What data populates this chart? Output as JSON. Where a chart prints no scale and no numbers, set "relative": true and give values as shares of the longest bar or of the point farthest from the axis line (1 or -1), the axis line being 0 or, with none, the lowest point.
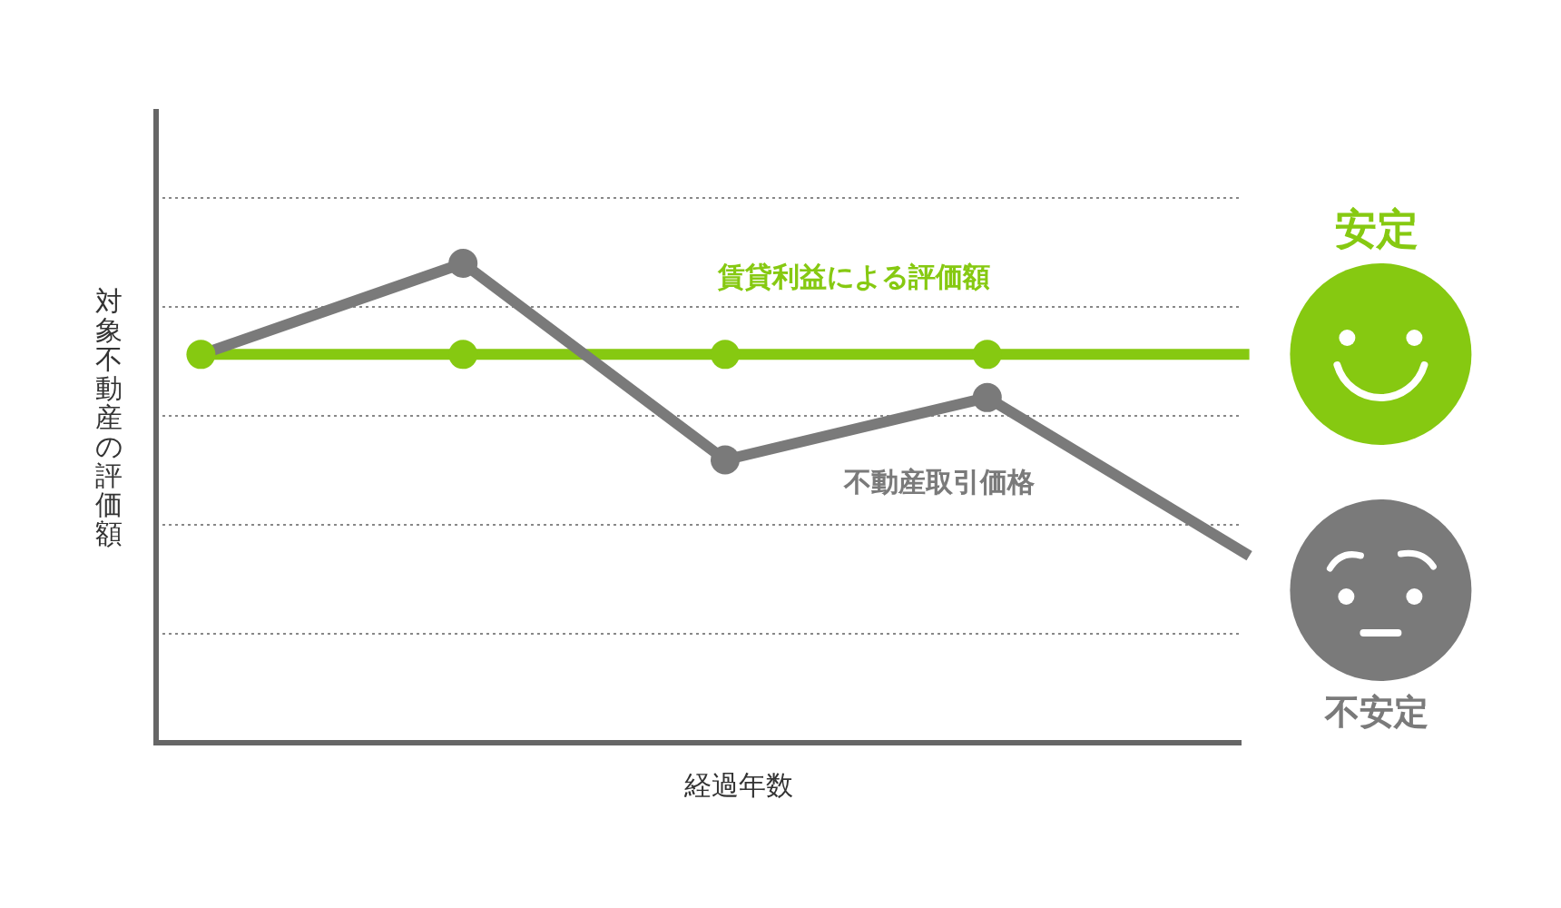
{
  "chart_data": {
    "type": "line",
    "xlabel": "経過年数",
    "ylabel": "対象不動産の評価額",
    "categories": [
      null,
      null,
      null,
      null,
      null
    ],
    "relative": true,
    "grid": "y",
    "marker": "circle",
    "line_style": "solid",
    "annotations": [
      "安定",
      "不安定"
    ],
    "series": [
      {
        "name": "賃貸利益による評価額",
        "color": "#86c911",
        "values": [
          0.81,
          0.81,
          0.81,
          0.81,
          null
        ]
      },
      {
        "name": "不動産取引価格",
        "color": "#7a7a7a",
        "values": [
          0.81,
          1,
          0.59,
          0.72,
          null
        ]
      },
      {
        "color": "#86c911",
        "values": [
          null,
          null,
          null,
          0.81,
          0.81
        ],
        "marker": "none"
      },
      {
        "color": "#7a7a7a",
        "values": [
          null,
          null,
          null,
          0.72,
          0.39
        ],
        "marker": "none"
      }
    ]
  }
}
